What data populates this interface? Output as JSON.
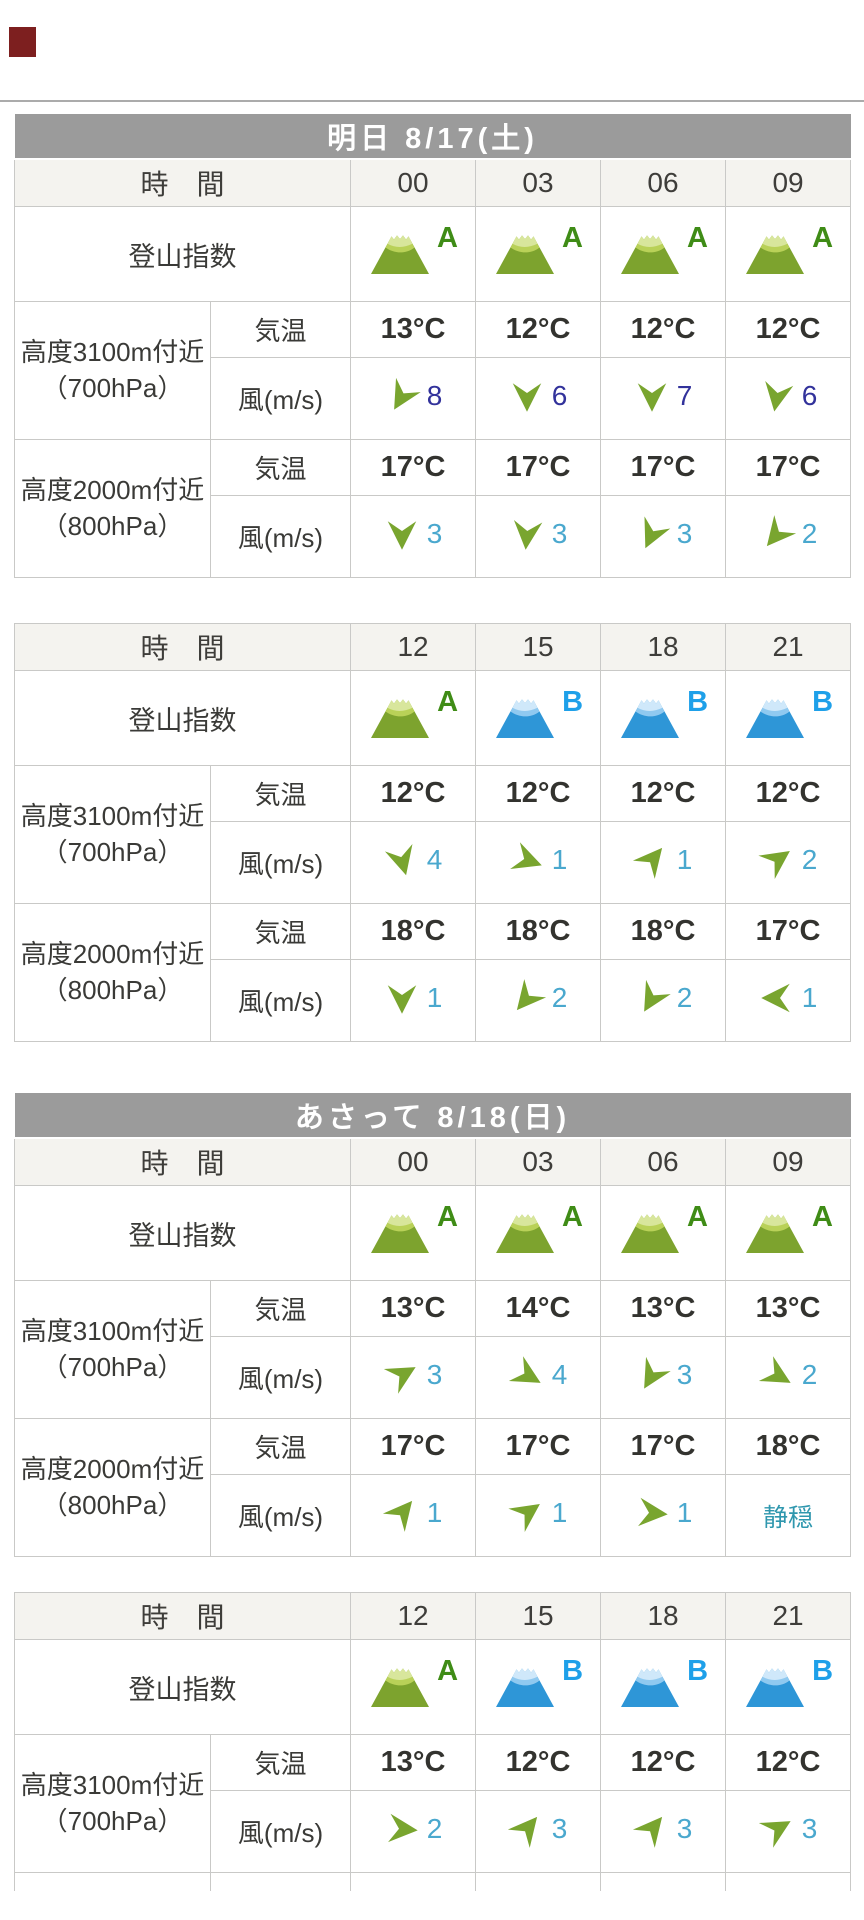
{
  "page": {
    "marker_color": "#7d1f1f",
    "divider_color": "#ababab"
  },
  "labels": {
    "time": "時　間",
    "index": "登山指数",
    "temp": "気温",
    "wind": "風(m/s)",
    "calm": "静穏",
    "alt3100": [
      "高度3100m付近",
      "（700hPa）"
    ],
    "alt2000": [
      "高度2000m付近",
      "（800hPa）"
    ]
  },
  "colors": {
    "title_bg": "#9b9b9b",
    "green_mountain": {
      "body": "#7da32e",
      "cap": "#b9d158",
      "top": "#d8e69c",
      "letter": "#3f8c16"
    },
    "blue_mountain": {
      "body": "#2e96d7",
      "cap": "#8fc9f0",
      "top": "#cfe8fa",
      "letter": "#1ea0e9"
    },
    "arrow": "#79a52f",
    "speed_dark": "#32329b",
    "speed_light": "#4aa8ce",
    "calm_text": "#2f97ae"
  },
  "tables": [
    {
      "title": "明日 8/17(土)",
      "times": [
        "00",
        "03",
        "06",
        "09"
      ],
      "grades": [
        {
          "letter": "A",
          "type": "green"
        },
        {
          "letter": "A",
          "type": "green"
        },
        {
          "letter": "A",
          "type": "green"
        },
        {
          "letter": "A",
          "type": "green"
        }
      ],
      "groups": [
        {
          "altitude": "alt3100",
          "temps": [
            "13°C",
            "12°C",
            "12°C",
            "12°C"
          ],
          "winds": [
            {
              "speed": "8",
              "rot": 30,
              "tone": "dark"
            },
            {
              "speed": "6",
              "rot": 0,
              "tone": "dark"
            },
            {
              "speed": "7",
              "rot": 0,
              "tone": "dark"
            },
            {
              "speed": "6",
              "rot": 10,
              "tone": "dark"
            }
          ]
        },
        {
          "altitude": "alt2000",
          "temps": [
            "17°C",
            "17°C",
            "17°C",
            "17°C"
          ],
          "winds": [
            {
              "speed": "3",
              "rot": 0,
              "tone": "light"
            },
            {
              "speed": "3",
              "rot": 5,
              "tone": "light"
            },
            {
              "speed": "3",
              "rot": 25,
              "tone": "light"
            },
            {
              "speed": "2",
              "rot": 40,
              "tone": "light"
            }
          ]
        }
      ]
    },
    {
      "title": null,
      "times": [
        "12",
        "15",
        "18",
        "21"
      ],
      "grades": [
        {
          "letter": "A",
          "type": "green"
        },
        {
          "letter": "B",
          "type": "blue"
        },
        {
          "letter": "B",
          "type": "blue"
        },
        {
          "letter": "B",
          "type": "blue"
        }
      ],
      "groups": [
        {
          "altitude": "alt3100",
          "temps": [
            "12°C",
            "12°C",
            "12°C",
            "12°C"
          ],
          "winds": [
            {
              "speed": "4",
              "rot": -15,
              "tone": "light"
            },
            {
              "speed": "1",
              "rot": -70,
              "tone": "light"
            },
            {
              "speed": "1",
              "rot": -140,
              "tone": "light"
            },
            {
              "speed": "2",
              "rot": -125,
              "tone": "light"
            }
          ]
        },
        {
          "altitude": "alt2000",
          "temps": [
            "18°C",
            "18°C",
            "18°C",
            "17°C"
          ],
          "winds": [
            {
              "speed": "1",
              "rot": 0,
              "tone": "light"
            },
            {
              "speed": "2",
              "rot": 40,
              "tone": "light"
            },
            {
              "speed": "2",
              "rot": 30,
              "tone": "light"
            },
            {
              "speed": "1",
              "rot": 90,
              "tone": "light"
            }
          ]
        }
      ]
    },
    {
      "title": "あさって 8/18(日)",
      "times": [
        "00",
        "03",
        "06",
        "09"
      ],
      "grades": [
        {
          "letter": "A",
          "type": "green"
        },
        {
          "letter": "A",
          "type": "green"
        },
        {
          "letter": "A",
          "type": "green"
        },
        {
          "letter": "A",
          "type": "green"
        }
      ],
      "groups": [
        {
          "altitude": "alt3100",
          "temps": [
            "13°C",
            "14°C",
            "13°C",
            "13°C"
          ],
          "winds": [
            {
              "speed": "3",
              "rot": -120,
              "tone": "light"
            },
            {
              "speed": "4",
              "rot": -60,
              "tone": "light"
            },
            {
              "speed": "3",
              "rot": 30,
              "tone": "light"
            },
            {
              "speed": "2",
              "rot": -60,
              "tone": "light"
            }
          ]
        },
        {
          "altitude": "alt2000",
          "temps": [
            "17°C",
            "17°C",
            "17°C",
            "18°C"
          ],
          "winds": [
            {
              "speed": "1",
              "rot": -140,
              "tone": "light"
            },
            {
              "speed": "1",
              "rot": -125,
              "tone": "light"
            },
            {
              "speed": "1",
              "rot": -85,
              "tone": "light"
            },
            {
              "calm": true
            }
          ]
        }
      ]
    },
    {
      "title": null,
      "times": [
        "12",
        "15",
        "18",
        "21"
      ],
      "grades": [
        {
          "letter": "A",
          "type": "green"
        },
        {
          "letter": "B",
          "type": "blue"
        },
        {
          "letter": "B",
          "type": "blue"
        },
        {
          "letter": "B",
          "type": "blue"
        }
      ],
      "groups": [
        {
          "altitude": "alt3100",
          "temps": [
            "13°C",
            "12°C",
            "12°C",
            "12°C"
          ],
          "winds": [
            {
              "speed": "2",
              "rot": -85,
              "tone": "light"
            },
            {
              "speed": "3",
              "rot": -140,
              "tone": "light"
            },
            {
              "speed": "3",
              "rot": -140,
              "tone": "light"
            },
            {
              "speed": "3",
              "rot": -120,
              "tone": "light"
            }
          ]
        }
      ],
      "cutoff": true
    }
  ]
}
